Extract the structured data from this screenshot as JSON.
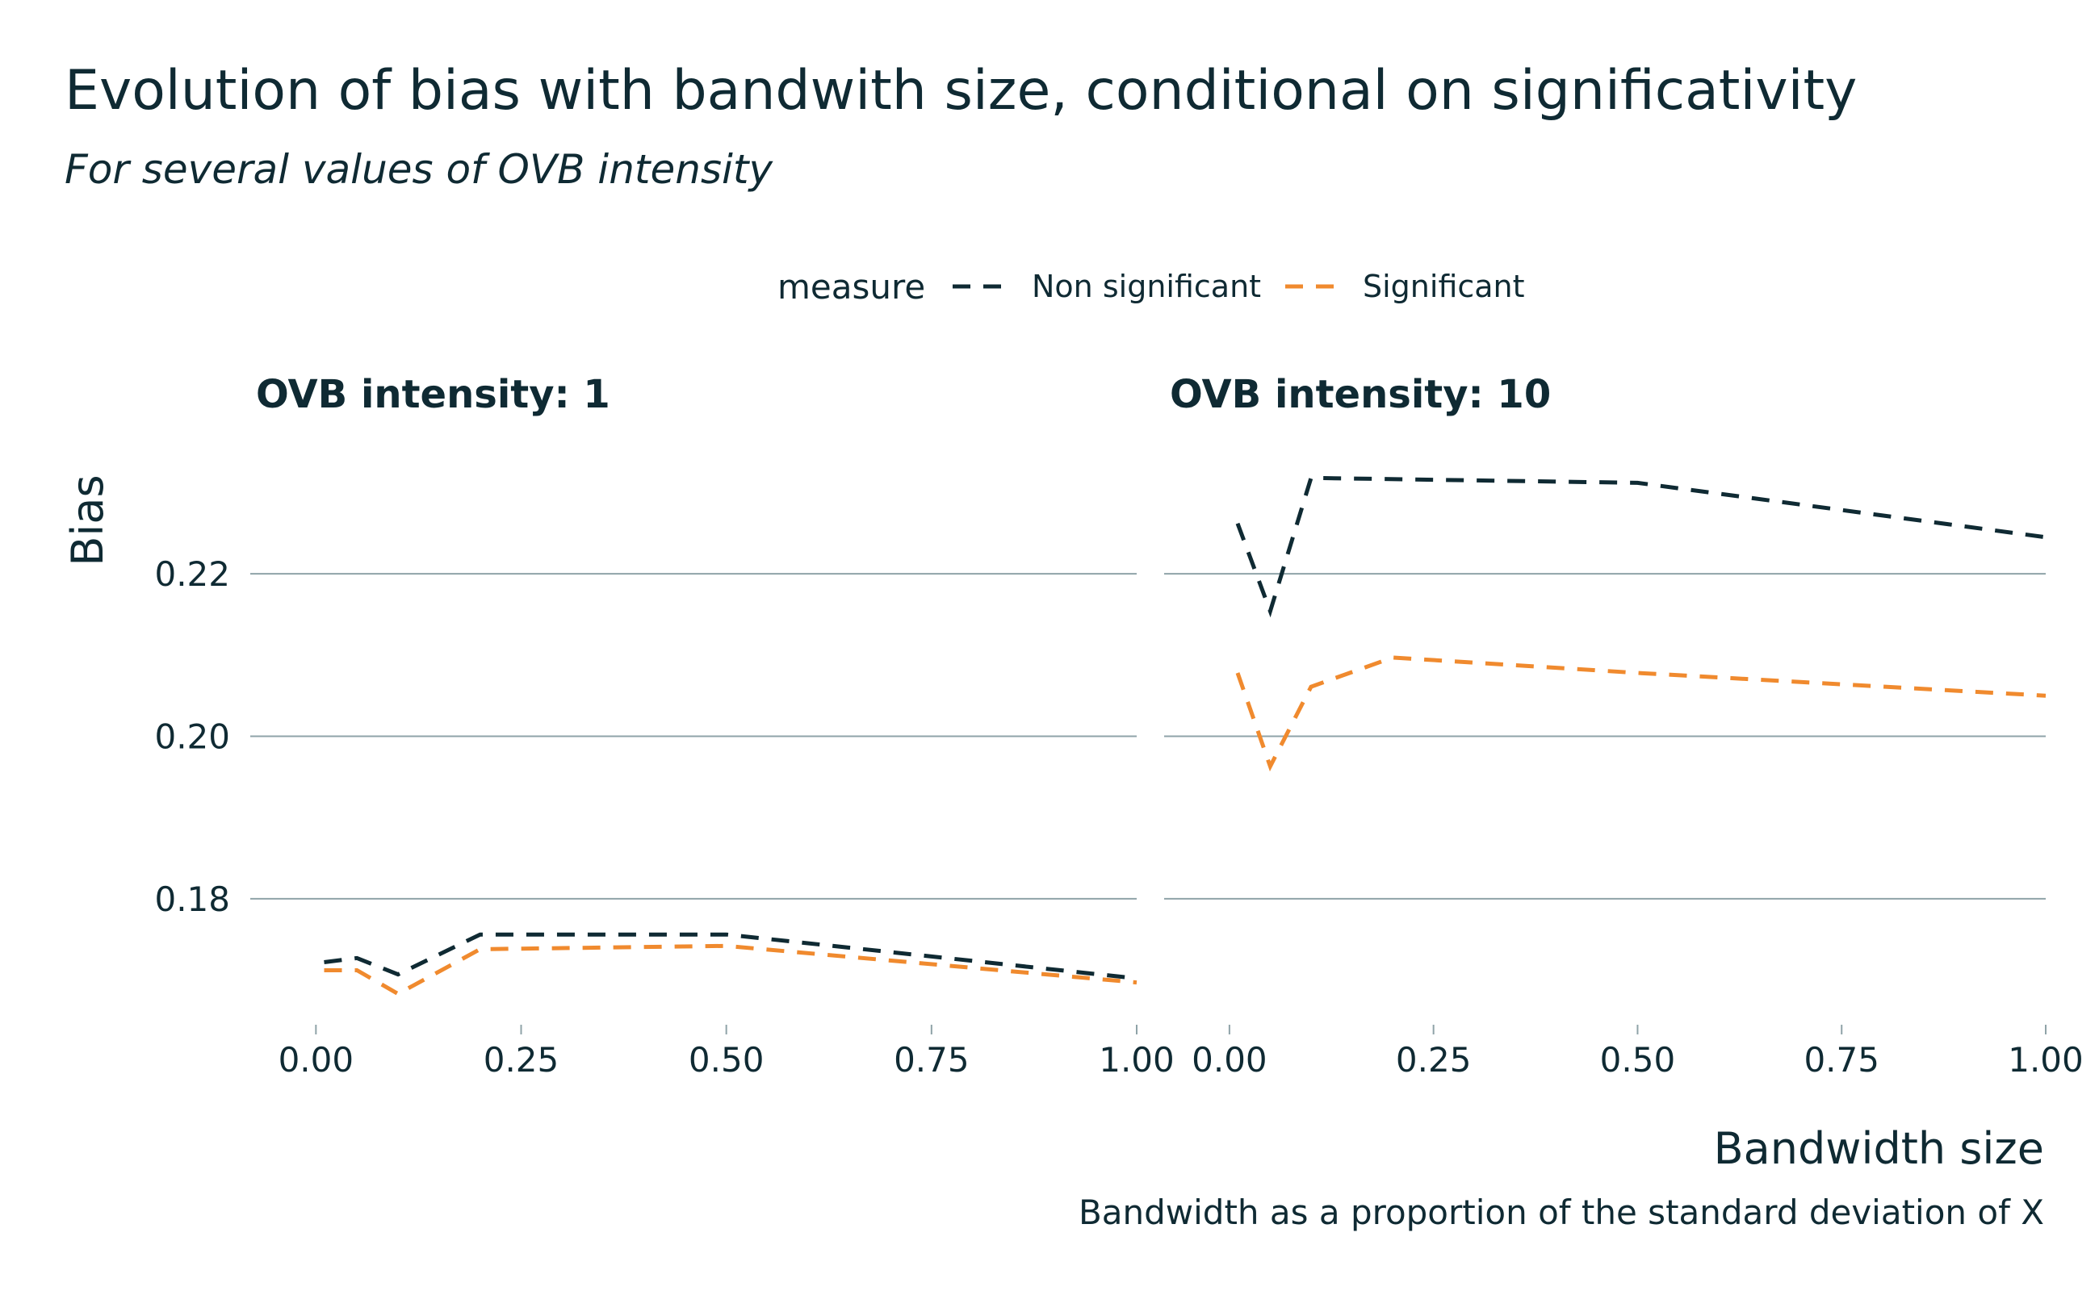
{
  "chart_data": {
    "type": "line",
    "title": "Evolution of bias with bandwith size, conditional on significativity",
    "subtitle": "For several values of OVB intensity",
    "xlabel": "Bandwidth size",
    "ylabel": "Bias",
    "caption": "Bandwidth as a proportion of the standard deviation of X",
    "legend": {
      "title": "measure",
      "position": "top",
      "entries": [
        "Non significant",
        "Significant"
      ]
    },
    "xlim": [
      -0.08,
      1.0
    ],
    "ylim": [
      0.1645,
      0.2365
    ],
    "x_ticks": [
      0.0,
      0.25,
      0.5,
      0.75,
      1.0
    ],
    "x_tick_labels": [
      "0.00",
      "0.25",
      "0.50",
      "0.75",
      "1.00"
    ],
    "y_ticks": [
      0.18,
      0.2,
      0.22
    ],
    "y_tick_labels": [
      "0.18",
      "0.20",
      "0.22"
    ],
    "grid": "horizontal major",
    "colors": {
      "Non significant": "#0f2a33",
      "Significant": "#f08a2e"
    },
    "panels": [
      {
        "title": "OVB intensity: 1",
        "series": [
          {
            "name": "Non significant",
            "x": [
              0.01,
              0.05,
              0.1,
              0.2,
              0.5,
              1.0
            ],
            "y": [
              0.1722,
              0.1727,
              0.1707,
              0.1756,
              0.1756,
              0.1702
            ]
          },
          {
            "name": "Significant",
            "x": [
              0.01,
              0.05,
              0.1,
              0.2,
              0.5,
              1.0
            ],
            "y": [
              0.1712,
              0.1712,
              0.1683,
              0.1738,
              0.1742,
              0.1697
            ]
          }
        ]
      },
      {
        "title": "OVB intensity: 10",
        "series": [
          {
            "name": "Non significant",
            "x": [
              0.01,
              0.05,
              0.1,
              0.5,
              1.0
            ],
            "y": [
              0.2262,
              0.2154,
              0.2318,
              0.2312,
              0.2245
            ]
          },
          {
            "name": "Significant",
            "x": [
              0.01,
              0.05,
              0.1,
              0.2,
              0.5,
              1.0
            ],
            "y": [
              0.2078,
              0.1963,
              0.2061,
              0.2097,
              0.2078,
              0.205
            ]
          }
        ]
      }
    ]
  }
}
